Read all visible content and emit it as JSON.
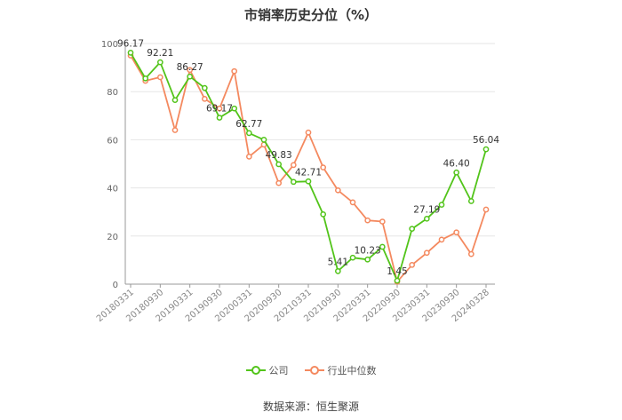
{
  "chart_data": {
    "type": "line",
    "title": "市销率历史分位（%）",
    "ylim": [
      0,
      100
    ],
    "yticks": [
      0,
      20,
      40,
      60,
      80,
      100
    ],
    "x_tick_labels": [
      "20180331",
      "20180930",
      "20190331",
      "20190930",
      "20200331",
      "20200930",
      "20210331",
      "20210930",
      "20220331",
      "20220930",
      "20230331",
      "20230930",
      "20240328"
    ],
    "x": [
      "20180331",
      "20180630",
      "20180930",
      "20181231",
      "20190331",
      "20190630",
      "20190930",
      "20191231",
      "20200331",
      "20200630",
      "20200930",
      "20201231",
      "20210331",
      "20210630",
      "20210930",
      "20211231",
      "20220331",
      "20220630",
      "20220930",
      "20221231",
      "20230331",
      "20230630",
      "20230930",
      "20231231",
      "20240328"
    ],
    "series": [
      {
        "name": "公司",
        "color": "#52c41a",
        "values": [
          96.17,
          85.5,
          92.21,
          76.5,
          86.27,
          81.5,
          69.17,
          73.0,
          62.77,
          60.0,
          49.83,
          42.5,
          42.71,
          29.0,
          5.41,
          11.0,
          10.23,
          15.5,
          1.45,
          23.0,
          27.19,
          33.0,
          46.4,
          34.5,
          56.04
        ]
      },
      {
        "name": "行业中位数",
        "color": "#f4895f",
        "values": [
          95.0,
          84.5,
          86.0,
          64.0,
          89.0,
          77.0,
          73.0,
          88.5,
          53.0,
          58.0,
          42.0,
          49.5,
          63.0,
          48.5,
          39.0,
          34.0,
          26.5,
          26.0,
          1.0,
          8.0,
          13.0,
          18.5,
          21.5,
          12.5,
          31.0
        ]
      }
    ],
    "data_labels": [
      {
        "index": 0,
        "text": "96.17"
      },
      {
        "index": 2,
        "text": "92.21"
      },
      {
        "index": 4,
        "text": "86.27"
      },
      {
        "index": 6,
        "text": "69.17"
      },
      {
        "index": 8,
        "text": "62.77"
      },
      {
        "index": 10,
        "text": "49.83"
      },
      {
        "index": 12,
        "text": "42.71"
      },
      {
        "index": 14,
        "text": "5.41"
      },
      {
        "index": 16,
        "text": "10.23"
      },
      {
        "index": 18,
        "text": "1.45"
      },
      {
        "index": 20,
        "text": "27.19"
      },
      {
        "index": 22,
        "text": "46.40"
      },
      {
        "index": 24,
        "text": "56.04"
      }
    ],
    "grid": true,
    "legend_position": "bottom"
  },
  "source_text": "数据来源：恒生聚源"
}
